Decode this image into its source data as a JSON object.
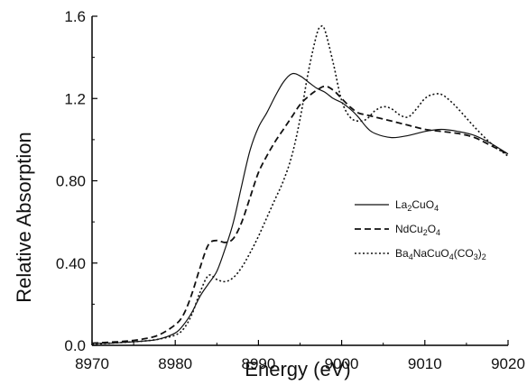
{
  "chart_data": {
    "type": "line",
    "title": "",
    "xlabel": "Energy (eV)",
    "ylabel": "Relative Absorption",
    "xlim": [
      8970,
      9020
    ],
    "ylim": [
      0,
      1.6
    ],
    "x_ticks": [
      8970,
      8980,
      8990,
      9000,
      9010,
      9020
    ],
    "x_tick_labels": [
      "8970",
      "8980",
      "8990",
      "9000",
      "9010",
      "9020"
    ],
    "y_ticks": [
      0,
      0.4,
      0.8,
      1.2,
      1.6
    ],
    "y_tick_labels": [
      "0.0",
      "0.40",
      "0.80",
      "1.2",
      "1.6"
    ],
    "grid": false,
    "legend_position": "right",
    "series": [
      {
        "name": "La2CuO4",
        "label_parts": [
          [
            "La",
            ""
          ],
          [
            "2",
            "sub"
          ],
          [
            "CuO",
            ""
          ],
          [
            "4",
            "sub"
          ]
        ],
        "style": "solid",
        "x": [
          8970,
          8972,
          8974,
          8976,
          8978,
          8980,
          8981,
          8982,
          8983,
          8984,
          8985,
          8986,
          8987,
          8988,
          8989,
          8990,
          8991,
          8992,
          8993,
          8994,
          8995,
          8996,
          8997,
          8998,
          8999,
          9000,
          9001,
          9002,
          9003,
          9004,
          9006,
          9008,
          9010,
          9012,
          9014,
          9016,
          9018,
          9020
        ],
        "y": [
          0.01,
          0.01,
          0.015,
          0.02,
          0.03,
          0.06,
          0.1,
          0.16,
          0.24,
          0.3,
          0.36,
          0.47,
          0.6,
          0.78,
          0.95,
          1.06,
          1.13,
          1.21,
          1.28,
          1.32,
          1.31,
          1.28,
          1.25,
          1.23,
          1.2,
          1.18,
          1.15,
          1.11,
          1.06,
          1.03,
          1.01,
          1.02,
          1.04,
          1.05,
          1.04,
          1.02,
          0.98,
          0.93
        ]
      },
      {
        "name": "NdCu2O4",
        "label_parts": [
          [
            "NdCu",
            ""
          ],
          [
            "2",
            "sub"
          ],
          [
            "O",
            ""
          ],
          [
            "4",
            "sub"
          ]
        ],
        "style": "dashed",
        "x": [
          8970,
          8972,
          8974,
          8976,
          8978,
          8980,
          8981,
          8982,
          8983,
          8984,
          8985,
          8986,
          8987,
          8988,
          8989,
          8990,
          8991,
          8992,
          8993,
          8994,
          8995,
          8996,
          8997,
          8998,
          8999,
          9000,
          9001,
          9002,
          9003,
          9004,
          9006,
          9008,
          9010,
          9012,
          9014,
          9016,
          9018,
          9020
        ],
        "y": [
          0.01,
          0.015,
          0.02,
          0.03,
          0.05,
          0.1,
          0.15,
          0.25,
          0.38,
          0.49,
          0.51,
          0.5,
          0.52,
          0.6,
          0.72,
          0.84,
          0.92,
          0.99,
          1.05,
          1.11,
          1.17,
          1.21,
          1.24,
          1.26,
          1.24,
          1.2,
          1.16,
          1.13,
          1.12,
          1.11,
          1.09,
          1.07,
          1.05,
          1.04,
          1.03,
          1.01,
          0.97,
          0.93
        ]
      },
      {
        "name": "Ba4NaCuO4(CO3)2",
        "label_parts": [
          [
            "Ba",
            ""
          ],
          [
            "4",
            "sub"
          ],
          [
            "NaCuO",
            ""
          ],
          [
            "4",
            "sub"
          ],
          [
            "(CO",
            ""
          ],
          [
            "3",
            "sub"
          ],
          [
            ")",
            ""
          ],
          [
            "2",
            "sub"
          ]
        ],
        "style": "dotted",
        "x": [
          8970,
          8972,
          8974,
          8976,
          8978,
          8980,
          8981,
          8982,
          8983,
          8984,
          8985,
          8986,
          8987,
          8988,
          8989,
          8990,
          8991,
          8992,
          8993,
          8994,
          8995,
          8996,
          8997,
          8997.5,
          8998,
          8999,
          9000,
          9001,
          9002,
          9003,
          9004,
          9005,
          9006,
          9007,
          9008,
          9009,
          9010,
          9011,
          9012,
          9013,
          9014,
          9016,
          9018,
          9020
        ],
        "y": [
          0.005,
          0.01,
          0.015,
          0.02,
          0.03,
          0.05,
          0.08,
          0.15,
          0.26,
          0.34,
          0.32,
          0.31,
          0.33,
          0.38,
          0.45,
          0.53,
          0.62,
          0.71,
          0.8,
          0.92,
          1.1,
          1.33,
          1.51,
          1.55,
          1.53,
          1.37,
          1.19,
          1.11,
          1.09,
          1.1,
          1.14,
          1.16,
          1.15,
          1.12,
          1.11,
          1.15,
          1.2,
          1.22,
          1.22,
          1.19,
          1.15,
          1.06,
          0.98,
          0.92
        ]
      }
    ]
  }
}
